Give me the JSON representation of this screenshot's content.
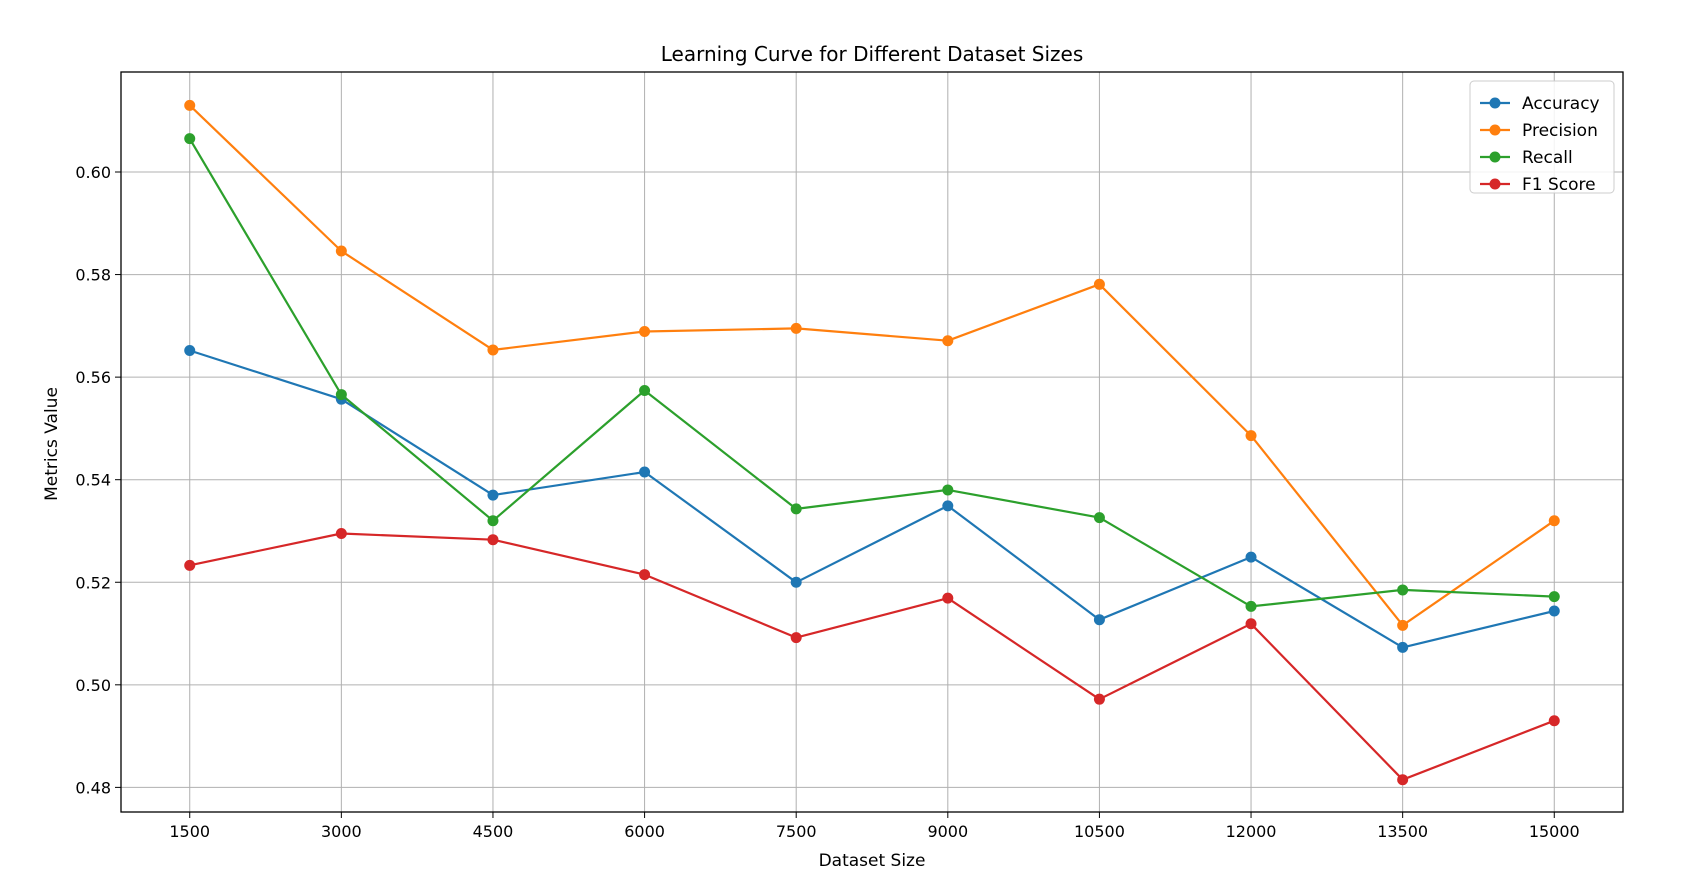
{
  "chart_data": {
    "type": "line",
    "title": "Learning Curve for Different Dataset Sizes",
    "xlabel": "Dataset Size",
    "ylabel": "Metrics Value",
    "x": [
      1500,
      3000,
      4500,
      6000,
      7500,
      9000,
      10500,
      12000,
      13500,
      15000
    ],
    "x_tick_labels": [
      "1500",
      "3000",
      "4500",
      "6000",
      "7500",
      "9000",
      "10500",
      "12000",
      "13500",
      "15000"
    ],
    "xlim": [
      820,
      15680
    ],
    "ylim": [
      0.4752,
      0.6195
    ],
    "y_ticks": [
      0.48,
      0.5,
      0.52,
      0.54,
      0.56,
      0.58,
      0.6
    ],
    "y_tick_labels": [
      "0.48",
      "0.50",
      "0.52",
      "0.54",
      "0.56",
      "0.58",
      "0.60"
    ],
    "grid": true,
    "legend_position": "top-right",
    "series": [
      {
        "name": "Accuracy",
        "color": "#1f77b4",
        "values": [
          0.5652,
          0.5557,
          0.537,
          0.5415,
          0.52,
          0.5349,
          0.5127,
          0.5249,
          0.5073,
          0.5144
        ]
      },
      {
        "name": "Precision",
        "color": "#ff7f0e",
        "values": [
          0.613,
          0.5846,
          0.5653,
          0.5689,
          0.5695,
          0.5671,
          0.5781,
          0.5486,
          0.5116,
          0.532
        ]
      },
      {
        "name": "Recall",
        "color": "#2ca02c",
        "values": [
          0.6065,
          0.5566,
          0.532,
          0.5574,
          0.5343,
          0.538,
          0.5326,
          0.5153,
          0.5185,
          0.5172
        ]
      },
      {
        "name": "F1 Score",
        "color": "#d62728",
        "values": [
          0.5233,
          0.5295,
          0.5283,
          0.5215,
          0.5092,
          0.5169,
          0.4972,
          0.5119,
          0.4815,
          0.493
        ]
      }
    ]
  }
}
